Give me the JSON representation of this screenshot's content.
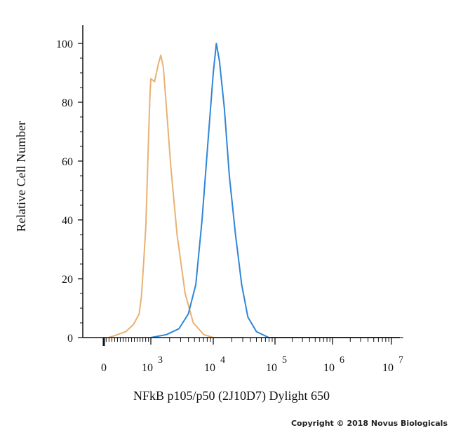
{
  "chart_data": {
    "type": "line",
    "xlabel": "NFkB p105/p50 (2J10D7) Dylight 650",
    "ylabel": "Relative Cell Number",
    "x_scale": "log (biexponential, 0 to 10^7)",
    "ylim": [
      0,
      105
    ],
    "y_ticks": [
      0,
      20,
      40,
      60,
      80,
      100
    ],
    "x_ticks": [
      {
        "base": "0",
        "exp": ""
      },
      {
        "base": "10",
        "exp": "3"
      },
      {
        "base": "10",
        "exp": "4"
      },
      {
        "base": "10",
        "exp": "5"
      },
      {
        "base": "10",
        "exp": "6"
      },
      {
        "base": "10",
        "exp": "7"
      }
    ],
    "grid": false,
    "legend": "none",
    "series": [
      {
        "color": "#e8b272",
        "points": [
          [
            0.3,
            0
          ],
          [
            0.6,
            0.5
          ],
          [
            1.4,
            2
          ],
          [
            1.9,
            4.5
          ],
          [
            2.25,
            8
          ],
          [
            2.4,
            14
          ],
          [
            2.55,
            26
          ],
          [
            2.68,
            38
          ],
          [
            2.78,
            55
          ],
          [
            2.88,
            72
          ],
          [
            2.94,
            82
          ],
          [
            3.0,
            88
          ],
          [
            3.06,
            87
          ],
          [
            3.12,
            93
          ],
          [
            3.16,
            96
          ],
          [
            3.2,
            92
          ],
          [
            3.25,
            78
          ],
          [
            3.32,
            58
          ],
          [
            3.42,
            35
          ],
          [
            3.55,
            15
          ],
          [
            3.68,
            5
          ],
          [
            3.85,
            1
          ],
          [
            4.0,
            0
          ],
          [
            4.5,
            0
          ]
        ]
      },
      {
        "color": "#2f86d6",
        "points": [
          [
            3.0,
            0
          ],
          [
            3.25,
            1
          ],
          [
            3.45,
            3
          ],
          [
            3.6,
            8
          ],
          [
            3.72,
            18
          ],
          [
            3.82,
            40
          ],
          [
            3.92,
            68
          ],
          [
            4.0,
            90
          ],
          [
            4.05,
            100
          ],
          [
            4.1,
            94
          ],
          [
            4.18,
            78
          ],
          [
            4.26,
            55
          ],
          [
            4.36,
            35
          ],
          [
            4.46,
            18
          ],
          [
            4.56,
            7
          ],
          [
            4.7,
            2
          ],
          [
            4.9,
            0
          ],
          [
            7.2,
            0
          ]
        ]
      }
    ]
  },
  "copyright": "Copyright © 2018 Novus Biologicals"
}
